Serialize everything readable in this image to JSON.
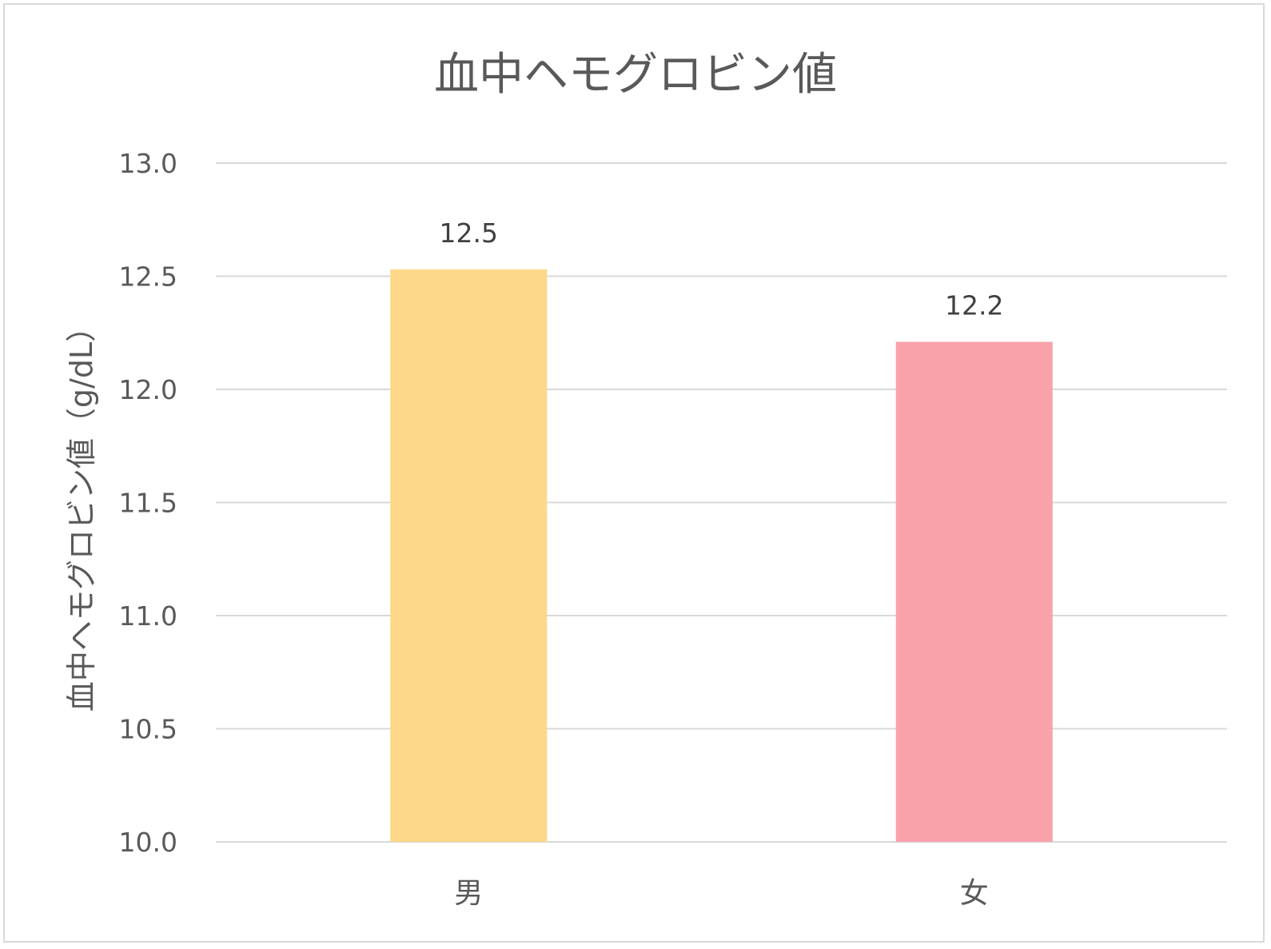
{
  "chart_data": {
    "type": "bar",
    "title": "血中ヘモグロビン値",
    "xlabel": "",
    "ylabel": "血中ヘモグロビン値（g/dL）",
    "categories": [
      "男",
      "女"
    ],
    "values": [
      12.53,
      12.21
    ],
    "data_labels": [
      "12.5",
      "12.2"
    ],
    "colors": [
      "#FDD88A",
      "#FAA2AA"
    ],
    "ylim": [
      10.0,
      13.0
    ],
    "yticks": [
      "10.0",
      "10.5",
      "11.0",
      "11.5",
      "12.0",
      "12.5",
      "13.0"
    ],
    "grid": true,
    "legend": "none"
  }
}
